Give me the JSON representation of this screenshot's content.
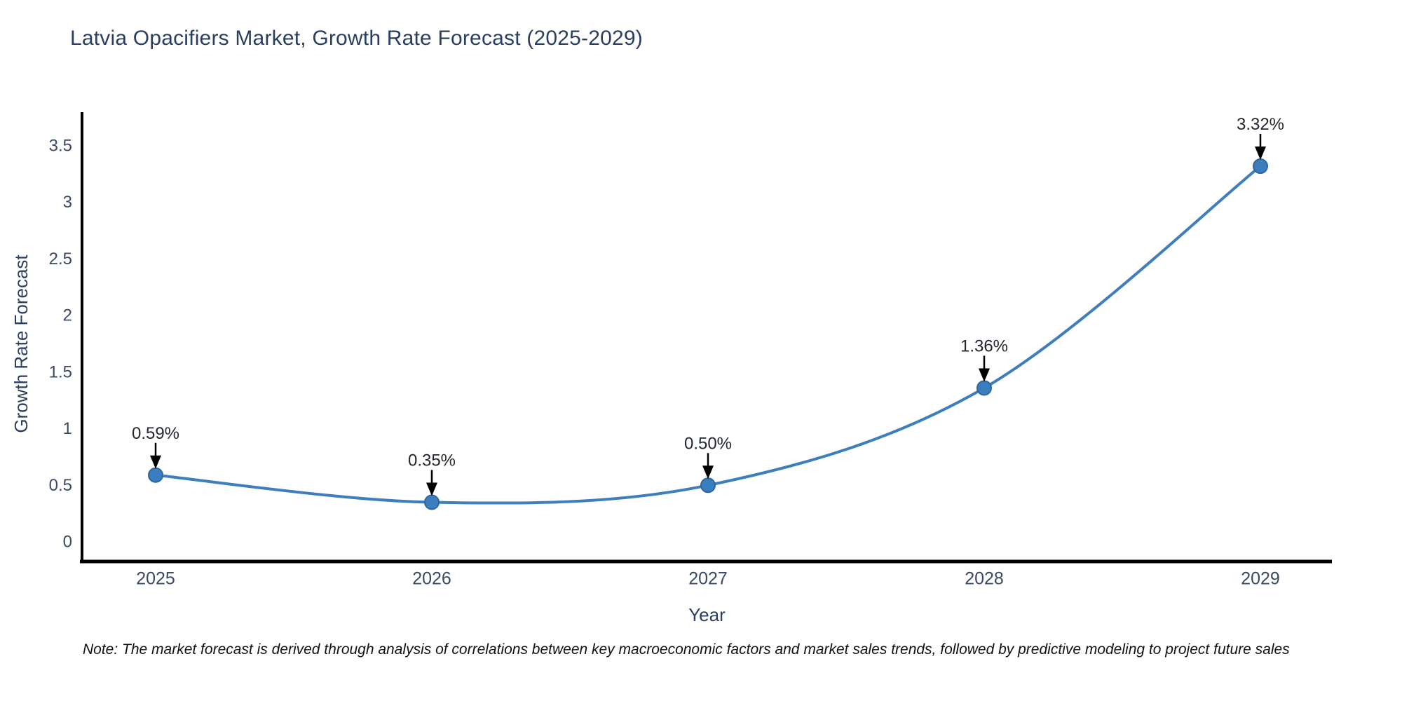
{
  "title": "Latvia Opacifiers Market, Growth Rate Forecast (2025-2029)",
  "note": {
    "text": "Note: The market forecast is derived through analysis of correlations between key macroeconomic factors and market sales trends, followed by predictive modeling to project future sales"
  },
  "chart_data": {
    "type": "line",
    "title": "Latvia Opacifiers Market, Growth Rate Forecast (2025-2029)",
    "x": [
      "2025",
      "2026",
      "2027",
      "2028",
      "2029"
    ],
    "values": [
      0.59,
      0.35,
      0.5,
      1.36,
      3.32
    ],
    "point_labels": [
      "0.59%",
      "0.35%",
      "0.50%",
      "1.36%",
      "3.32%"
    ],
    "xlabel": "Year",
    "ylabel": "Growth Rate Forecast",
    "ylim": [
      0,
      3.5
    ],
    "yticks": [
      0,
      0.5,
      1,
      1.5,
      2,
      2.5,
      3,
      3.5
    ],
    "line_style": "spline",
    "grid": false,
    "legend": "none",
    "colors": {
      "line": "#3d7ebd",
      "marker_fill": "#3a7ebf",
      "marker_edge": "#2f6699",
      "axis": "#000000",
      "annotation_arrow": "#000000",
      "title_text": "#2a3f5f",
      "tick_text": "#3b4a63"
    }
  }
}
